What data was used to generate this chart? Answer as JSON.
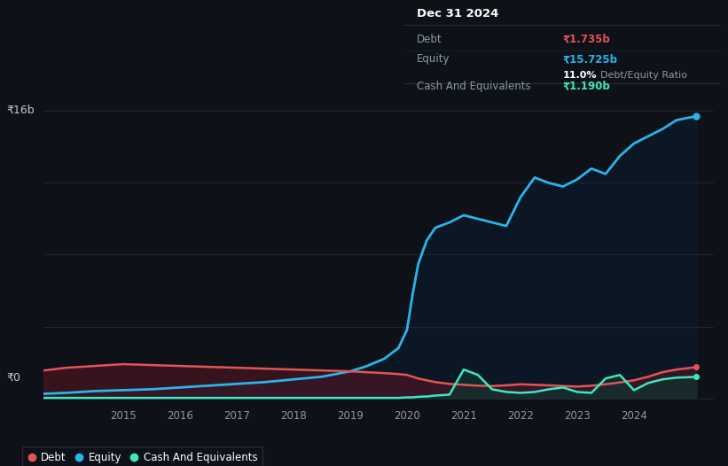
{
  "background_color": "#0e1117",
  "plot_bg_color": "#0e1117",
  "ylabel_top": "₹16b",
  "ylabel_bottom": "₹0",
  "x_ticks": [
    2015,
    2016,
    2017,
    2018,
    2019,
    2020,
    2021,
    2022,
    2023,
    2024
  ],
  "xlim": [
    2013.6,
    2025.4
  ],
  "ylim": [
    -0.4,
    17.0
  ],
  "debt_color": "#e05555",
  "equity_color": "#29b5e8",
  "cash_color": "#3de8c0",
  "debt_fill_alpha": 0.55,
  "equity_fill_alpha": 0.3,
  "cash_fill_alpha": 0.65,
  "debt_fill_color": "#5a1525",
  "equity_fill_color": "#0a2848",
  "cash_fill_color": "#0a3530",
  "grid_color": "#1e2535",
  "years": [
    2013.6,
    2014.0,
    2014.5,
    2015.0,
    2015.5,
    2016.0,
    2016.5,
    2017.0,
    2017.5,
    2018.0,
    2018.5,
    2019.0,
    2019.3,
    2019.6,
    2019.85,
    2020.0,
    2020.1,
    2020.2,
    2020.35,
    2020.5,
    2020.75,
    2021.0,
    2021.25,
    2021.5,
    2021.75,
    2022.0,
    2022.25,
    2022.5,
    2022.75,
    2023.0,
    2023.25,
    2023.5,
    2023.75,
    2024.0,
    2024.25,
    2024.5,
    2024.75,
    2025.1
  ],
  "equity": [
    0.25,
    0.3,
    0.4,
    0.45,
    0.5,
    0.6,
    0.7,
    0.8,
    0.9,
    1.05,
    1.2,
    1.5,
    1.8,
    2.2,
    2.8,
    3.8,
    5.8,
    7.5,
    8.8,
    9.5,
    9.8,
    10.2,
    10.0,
    9.8,
    9.6,
    11.2,
    12.3,
    12.0,
    11.8,
    12.2,
    12.8,
    12.5,
    13.5,
    14.2,
    14.6,
    15.0,
    15.5,
    15.725
  ],
  "debt": [
    1.55,
    1.7,
    1.8,
    1.9,
    1.85,
    1.8,
    1.75,
    1.7,
    1.65,
    1.6,
    1.55,
    1.5,
    1.45,
    1.4,
    1.35,
    1.3,
    1.2,
    1.1,
    1.0,
    0.9,
    0.8,
    0.75,
    0.7,
    0.68,
    0.72,
    0.78,
    0.75,
    0.72,
    0.68,
    0.65,
    0.7,
    0.78,
    0.88,
    1.0,
    1.2,
    1.45,
    1.6,
    1.735
  ],
  "cash": [
    0.02,
    0.02,
    0.02,
    0.02,
    0.02,
    0.02,
    0.02,
    0.02,
    0.02,
    0.02,
    0.02,
    0.02,
    0.02,
    0.02,
    0.02,
    0.05,
    0.05,
    0.08,
    0.1,
    0.15,
    0.2,
    1.6,
    1.3,
    0.5,
    0.35,
    0.3,
    0.35,
    0.5,
    0.6,
    0.35,
    0.3,
    1.1,
    1.3,
    0.45,
    0.85,
    1.05,
    1.15,
    1.19
  ],
  "legend_items": [
    "Debt",
    "Equity",
    "Cash And Equivalents"
  ],
  "legend_colors": [
    "#e05555",
    "#29b5e8",
    "#3de8c0"
  ],
  "tooltip_date": "Dec 31 2024",
  "tooltip_debt_label": "Debt",
  "tooltip_debt_value": "₹1.735b",
  "tooltip_equity_label": "Equity",
  "tooltip_equity_value": "₹15.725b",
  "tooltip_ratio_pct": "11.0%",
  "tooltip_ratio_label": "Debt/Equity Ratio",
  "tooltip_cash_label": "Cash And Equivalents",
  "tooltip_cash_value": "₹1.190b"
}
